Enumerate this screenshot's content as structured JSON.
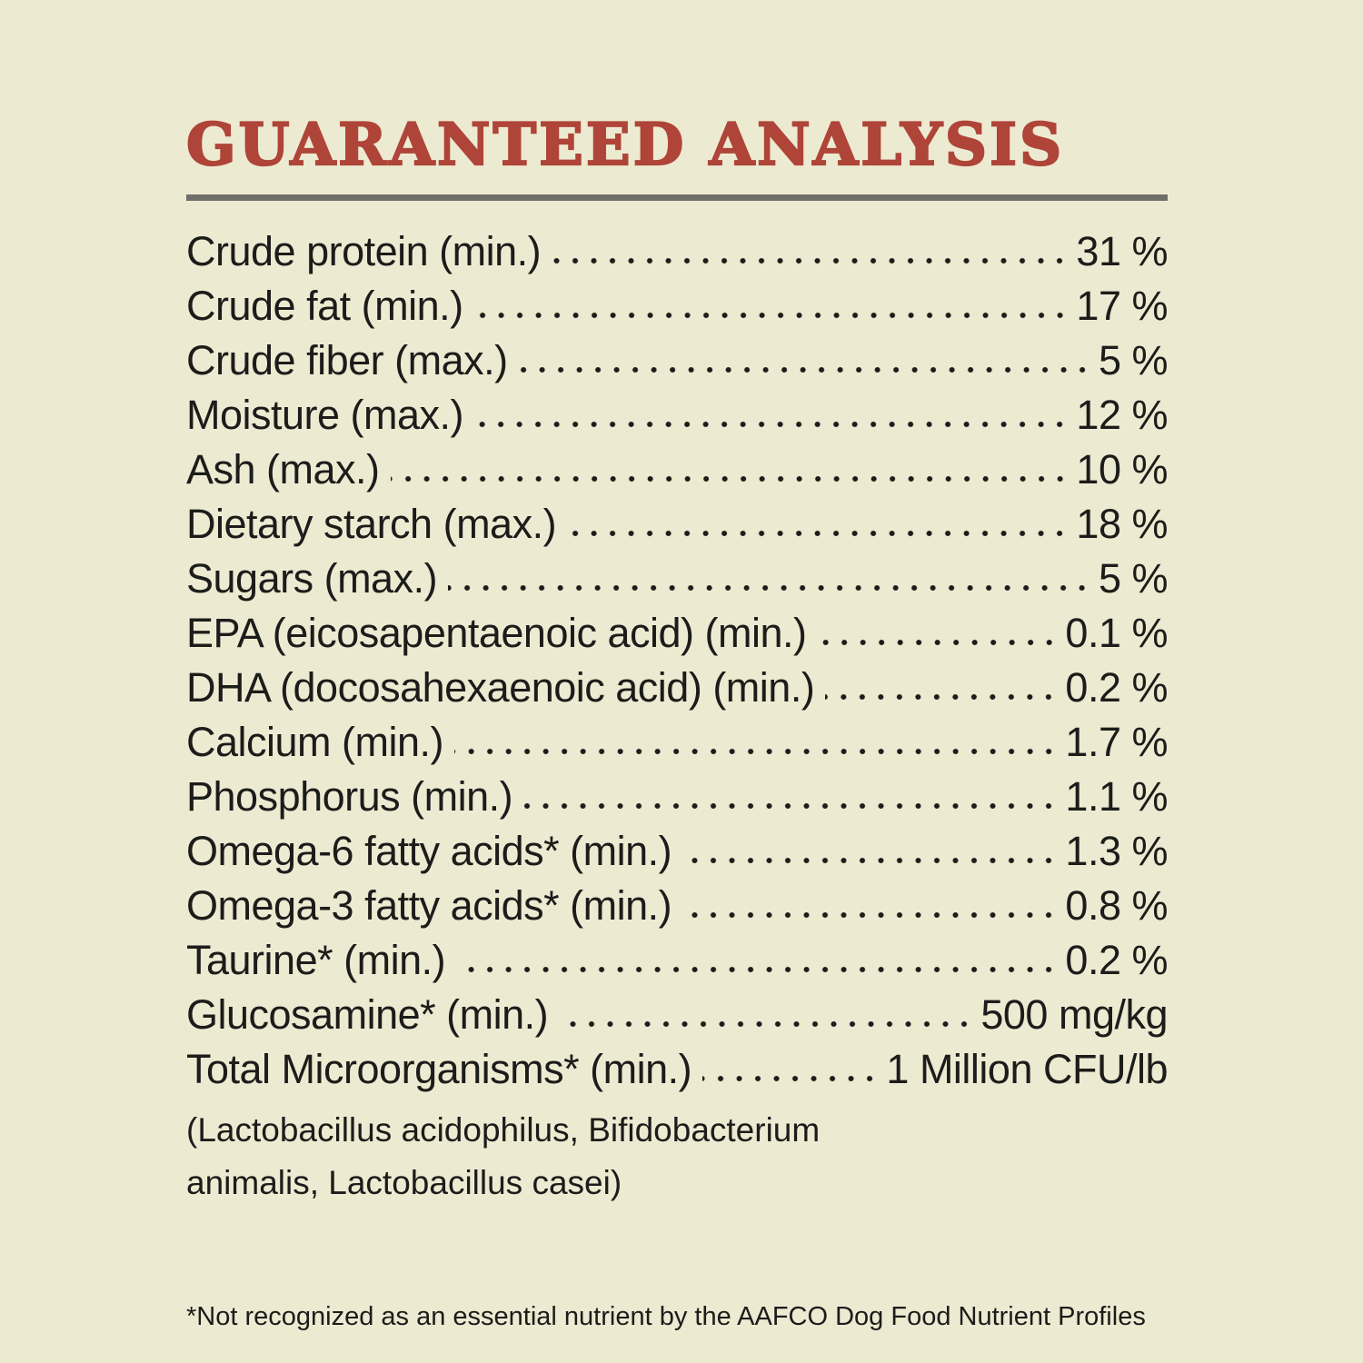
{
  "page": {
    "title": "GUARANTEED ANALYSIS",
    "colors": {
      "background": "#EDEAD2",
      "title_red": "#AF4438",
      "text": "#1C1C1A",
      "rule_gray": "#6F6F69"
    }
  },
  "analysis": {
    "rows": [
      {
        "label": "Crude protein (min.)",
        "value": "31 %"
      },
      {
        "label": "Crude fat (min.)",
        "value": "17 %"
      },
      {
        "label": "Crude fiber (max.)",
        "value": "5 %"
      },
      {
        "label": "Moisture (max.)",
        "value": "12 %"
      },
      {
        "label": "Ash (max.)",
        "value": "10 %"
      },
      {
        "label": "Dietary starch (max.)",
        "value": "18 %"
      },
      {
        "label": "Sugars (max.)",
        "value": "5 %"
      },
      {
        "label": "EPA (eicosapentaenoic acid) (min.)",
        "value": "0.1 %"
      },
      {
        "label": "DHA (docosahexaenoic acid) (min.)",
        "value": "0.2 %"
      },
      {
        "label": "Calcium (min.)",
        "value": "1.7 %"
      },
      {
        "label": "Phosphorus (min.)",
        "value": "1.1 %"
      },
      {
        "label": "Omega-6 fatty acids* (min.)",
        "value": "1.3 %"
      },
      {
        "label": "Omega-3 fatty acids* (min.)",
        "value": "0.8 %"
      },
      {
        "label": "Taurine* (min.)",
        "value": "0.2 %"
      },
      {
        "label": "Glucosamine* (min.)",
        "value": "500 mg/kg"
      },
      {
        "label": "Total Microorganisms* (min.)",
        "value": "1 Million CFU/lb"
      }
    ],
    "species_note_lines": [
      "(Lactobacillus acidophilus, Bifidobacterium",
      "animalis, Lactobacillus casei)"
    ],
    "footnote": "*Not recognized as an essential nutrient by the AAFCO Dog Food Nutrient Profiles"
  }
}
